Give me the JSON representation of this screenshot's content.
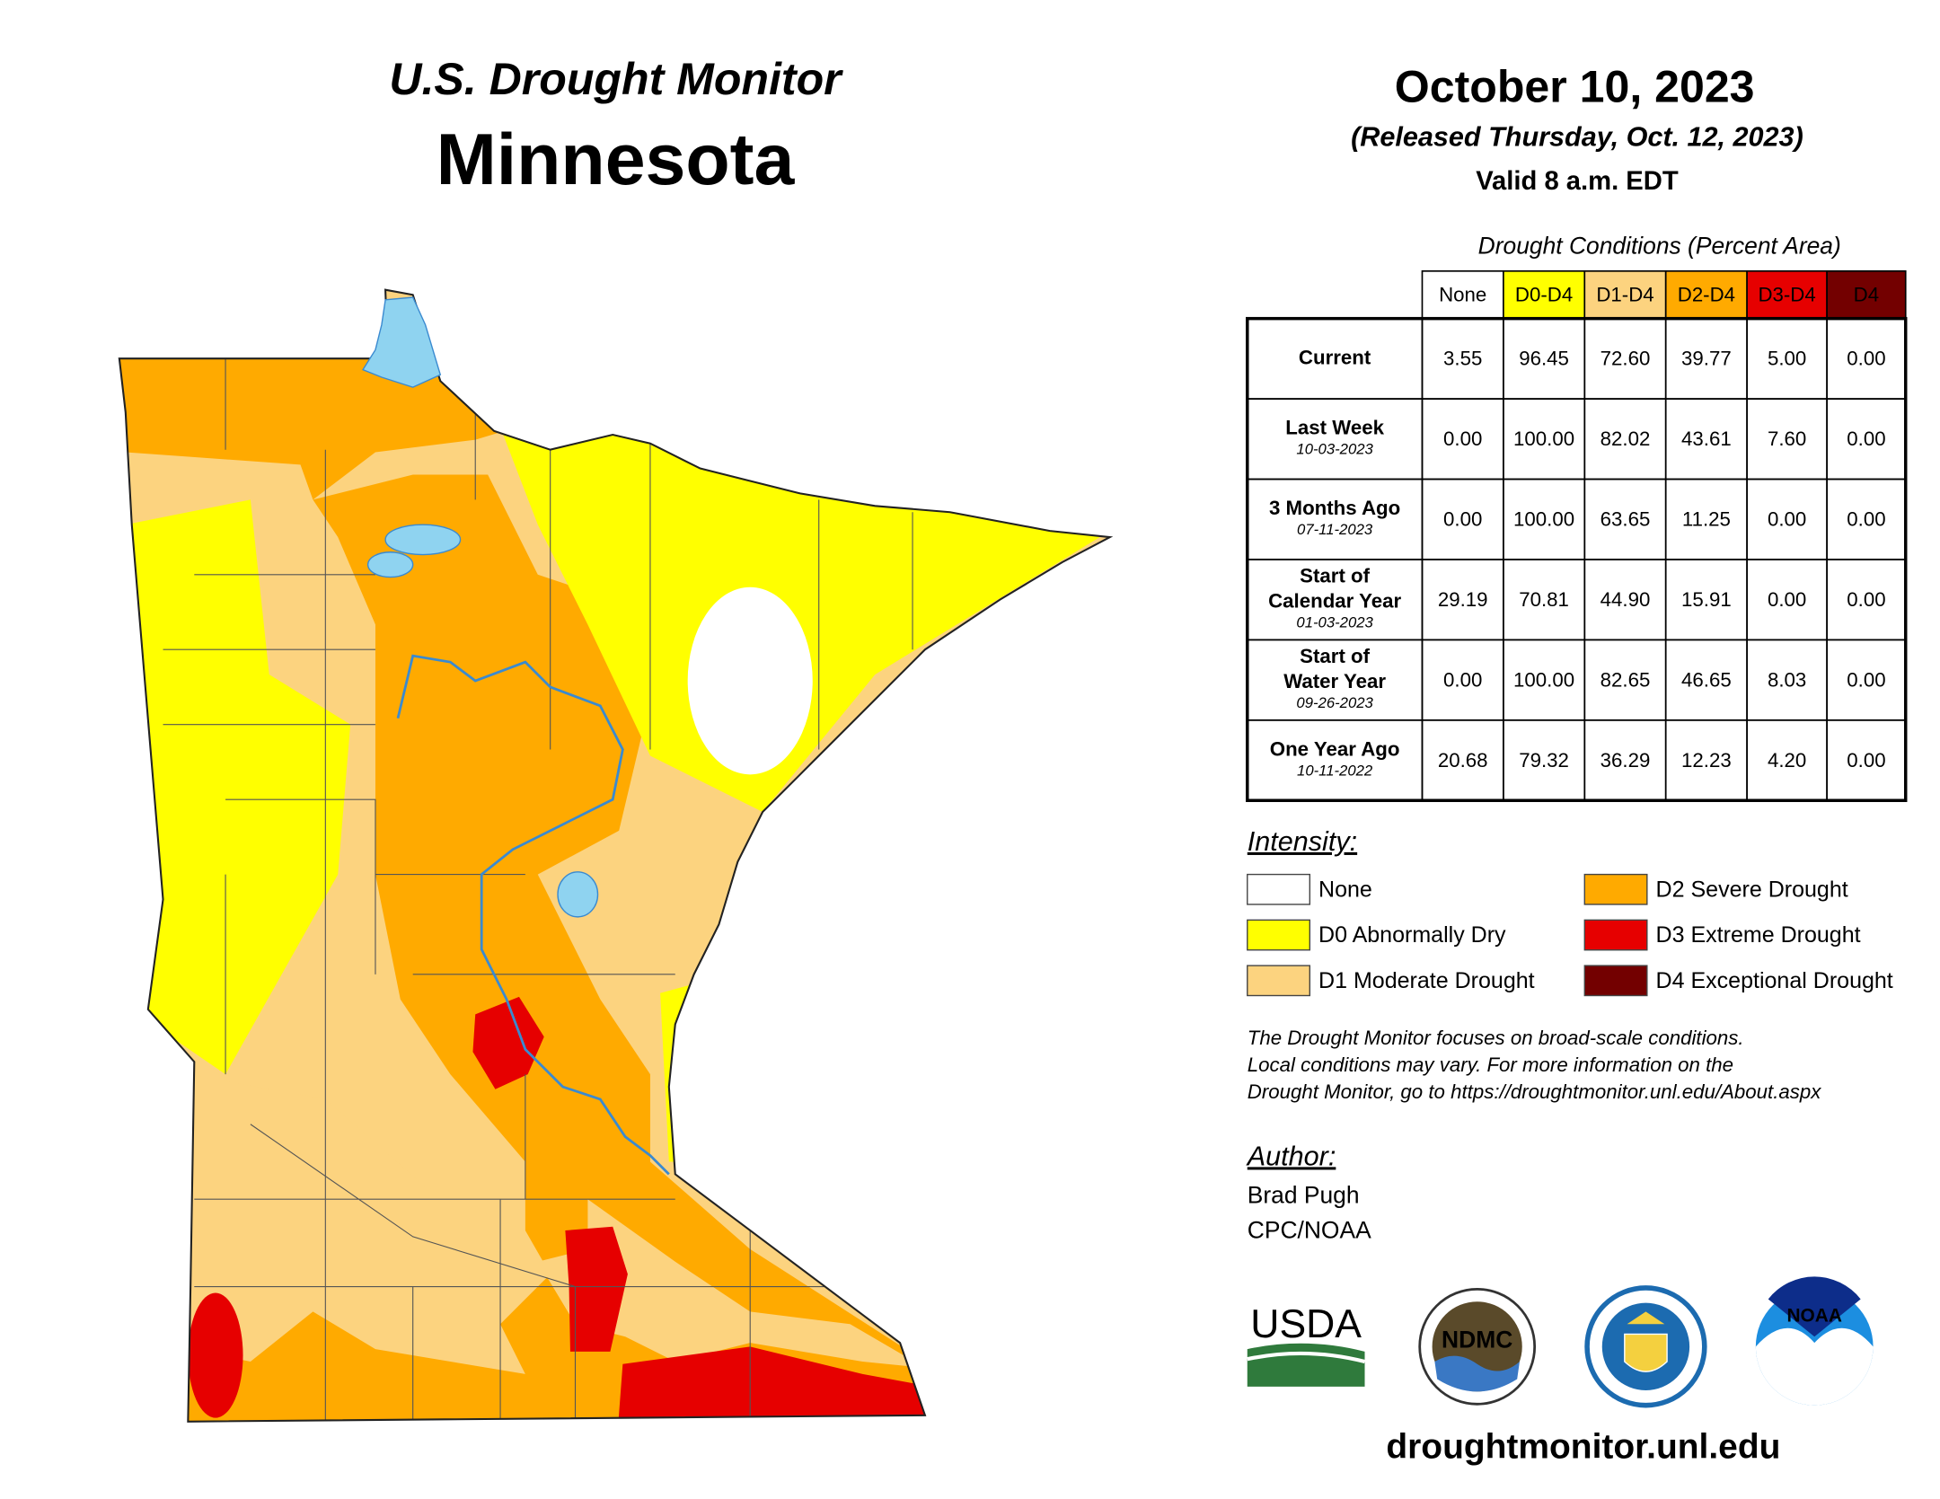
{
  "header": {
    "program": "U.S. Drought Monitor",
    "state": "Minnesota",
    "date": "October 10, 2023",
    "released": "(Released Thursday, Oct. 12, 2023)",
    "valid": "Valid 8 a.m. EDT"
  },
  "table": {
    "caption": "Drought Conditions (Percent Area)",
    "columns": [
      {
        "label": "None",
        "color": "#ffffff",
        "text_color": "#000000"
      },
      {
        "label": "D0-D4",
        "color": "#ffff00",
        "text_color": "#000000"
      },
      {
        "label": "D1-D4",
        "color": "#fcd37f",
        "text_color": "#000000"
      },
      {
        "label": "D2-D4",
        "color": "#ffaa00",
        "text_color": "#000000"
      },
      {
        "label": "D3-D4",
        "color": "#e60000",
        "text_color": "#ffffff"
      },
      {
        "label": "D4",
        "color": "#730000",
        "text_color": "#ffffff"
      }
    ],
    "rows": [
      {
        "label": [
          "Current"
        ],
        "values": [
          "3.55",
          "96.45",
          "72.60",
          "39.77",
          "5.00",
          "0.00"
        ]
      },
      {
        "label": [
          "Last Week"
        ],
        "date": "10-03-2023",
        "values": [
          "0.00",
          "100.00",
          "82.02",
          "43.61",
          "7.60",
          "0.00"
        ]
      },
      {
        "label": [
          "3 Months Ago"
        ],
        "date": "07-11-2023",
        "values": [
          "0.00",
          "100.00",
          "63.65",
          "11.25",
          "0.00",
          "0.00"
        ]
      },
      {
        "label": [
          "Start of",
          "Calendar Year"
        ],
        "date": "01-03-2023",
        "values": [
          "29.19",
          "70.81",
          "44.90",
          "15.91",
          "0.00",
          "0.00"
        ]
      },
      {
        "label": [
          "Start of",
          "Water Year"
        ],
        "date": "09-26-2023",
        "values": [
          "0.00",
          "100.00",
          "82.65",
          "46.65",
          "8.03",
          "0.00"
        ]
      },
      {
        "label": [
          "One Year Ago"
        ],
        "date": "10-11-2022",
        "values": [
          "20.68",
          "79.32",
          "36.29",
          "12.23",
          "4.20",
          "0.00"
        ]
      }
    ]
  },
  "legend": {
    "title": "Intensity:",
    "items": [
      {
        "label": "None",
        "color": "#ffffff"
      },
      {
        "label": "D0 Abnormally Dry",
        "color": "#ffff00"
      },
      {
        "label": "D1 Moderate Drought",
        "color": "#fcd37f"
      },
      {
        "label": "D2 Severe Drought",
        "color": "#ffaa00"
      },
      {
        "label": "D3 Extreme Drought",
        "color": "#e60000"
      },
      {
        "label": "D4 Exceptional Drought",
        "color": "#730000"
      }
    ]
  },
  "note": [
    "The Drought Monitor focuses on broad-scale conditions.",
    "Local conditions may vary. For more information on the",
    "Drought Monitor, go to https://droughtmonitor.unl.edu/About.aspx"
  ],
  "author": {
    "title": "Author:",
    "lines": [
      "Brad Pugh",
      "CPC/NOAA"
    ]
  },
  "logos": [
    "USDA",
    "NDMC",
    "NOAA"
  ],
  "footer": "droughtmonitor.unl.edu"
}
